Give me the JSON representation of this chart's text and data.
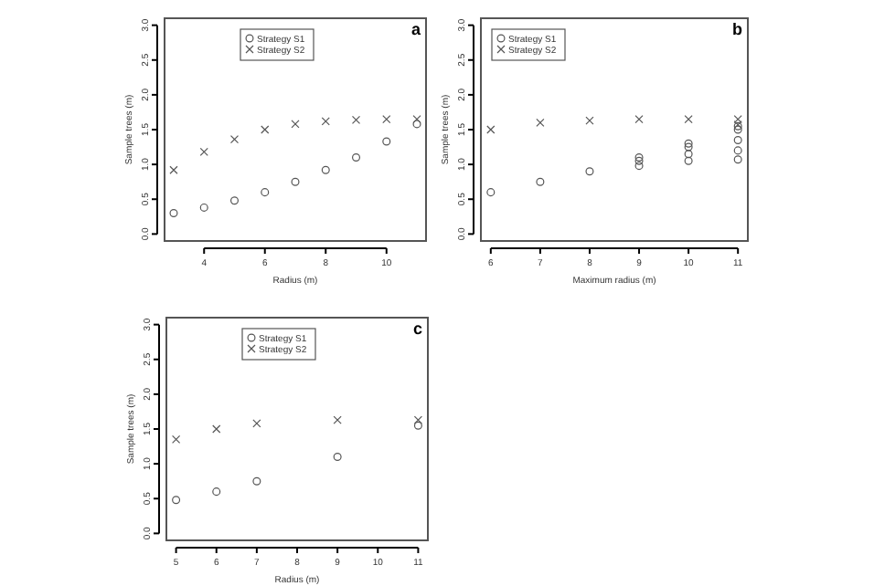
{
  "chart_data": [
    {
      "type": "scatter",
      "xlabel": "Radius (m)",
      "ylabel": "Sample trees (m)",
      "annotations": [
        "a"
      ],
      "xlim": [
        2.7,
        11.3
      ],
      "xticks": [
        4,
        6,
        8,
        10
      ],
      "ylim": [
        -0.1,
        3.1
      ],
      "yticks": [
        {
          "value": 0,
          "label": "0.0"
        },
        {
          "value": 0.5,
          "label": "0.5"
        },
        {
          "value": 1,
          "label": "1.0"
        },
        {
          "value": 1.5,
          "label": "1.5"
        },
        {
          "value": 2,
          "label": "2.0"
        },
        {
          "value": 2.5,
          "label": "2.5"
        },
        {
          "value": 3,
          "label": "3.0"
        }
      ],
      "legend": "top",
      "grid": false,
      "series": [
        {
          "name": "Strategy S1",
          "color": "#555555",
          "marker": "circle",
          "x": [
            3,
            4,
            5,
            6,
            7,
            8,
            9,
            10,
            11
          ],
          "values": [
            0.3,
            0.38,
            0.48,
            0.6,
            0.75,
            0.92,
            1.1,
            1.33,
            1.58
          ]
        },
        {
          "name": "Strategy S2",
          "color": "#555555",
          "marker": "cross",
          "x": [
            3,
            4,
            5,
            6,
            7,
            8,
            9,
            10,
            11
          ],
          "values": [
            0.92,
            1.18,
            1.36,
            1.5,
            1.58,
            1.62,
            1.64,
            1.65,
            1.65
          ]
        }
      ]
    },
    {
      "type": "scatter",
      "xlabel": "Maximum radius (m)",
      "ylabel": "Sample trees (m)",
      "annotations": [
        "b"
      ],
      "xlim": [
        5.8,
        11.2
      ],
      "xticks": [
        6,
        7,
        8,
        9,
        10,
        11
      ],
      "ylim": [
        -0.1,
        3.1
      ],
      "yticks": [
        {
          "value": 0,
          "label": "0.0"
        },
        {
          "value": 0.5,
          "label": "0.5"
        },
        {
          "value": 1,
          "label": "1.0"
        },
        {
          "value": 1.5,
          "label": "1.5"
        },
        {
          "value": 2,
          "label": "2.0"
        },
        {
          "value": 2.5,
          "label": "2.5"
        },
        {
          "value": 3,
          "label": "3.0"
        }
      ],
      "legend": "top left",
      "grid": false,
      "series": [
        {
          "name": "Strategy S1",
          "color": "#555555",
          "marker": "circle",
          "x": [
            6,
            7,
            8,
            9,
            9,
            9,
            10,
            10,
            10,
            10,
            11,
            11,
            11,
            11,
            11
          ],
          "values": [
            0.6,
            0.75,
            0.9,
            0.98,
            1.05,
            1.1,
            1.05,
            1.15,
            1.25,
            1.3,
            1.07,
            1.2,
            1.35,
            1.5,
            1.55
          ]
        },
        {
          "name": "Strategy S2",
          "color": "#555555",
          "marker": "cross",
          "x": [
            6,
            7,
            8,
            9,
            10,
            11,
            11
          ],
          "values": [
            1.5,
            1.6,
            1.63,
            1.65,
            1.65,
            1.65,
            1.57
          ]
        }
      ]
    },
    {
      "type": "scatter",
      "xlabel": "Radius (m)",
      "ylabel": "Sample trees (m)",
      "annotations": [
        "c"
      ],
      "xlim": [
        4.76,
        11.24
      ],
      "xticks": [
        5,
        6,
        7,
        8,
        9,
        10,
        11
      ],
      "ylim": [
        -0.1,
        3.1
      ],
      "yticks": [
        {
          "value": 0,
          "label": "0.0"
        },
        {
          "value": 0.5,
          "label": "0.5"
        },
        {
          "value": 1,
          "label": "1.0"
        },
        {
          "value": 1.5,
          "label": "1.5"
        },
        {
          "value": 2,
          "label": "2.0"
        },
        {
          "value": 2.5,
          "label": "2.5"
        },
        {
          "value": 3,
          "label": "3.0"
        }
      ],
      "legend": "top",
      "grid": false,
      "series": [
        {
          "name": "Strategy S1",
          "color": "#555555",
          "marker": "circle",
          "x": [
            5,
            6,
            7,
            9,
            11
          ],
          "values": [
            0.48,
            0.6,
            0.75,
            1.1,
            1.55
          ]
        },
        {
          "name": "Strategy S2",
          "color": "#555555",
          "marker": "cross",
          "x": [
            5,
            6,
            7,
            9,
            11
          ],
          "values": [
            1.35,
            1.5,
            1.58,
            1.63,
            1.63
          ]
        }
      ]
    }
  ]
}
